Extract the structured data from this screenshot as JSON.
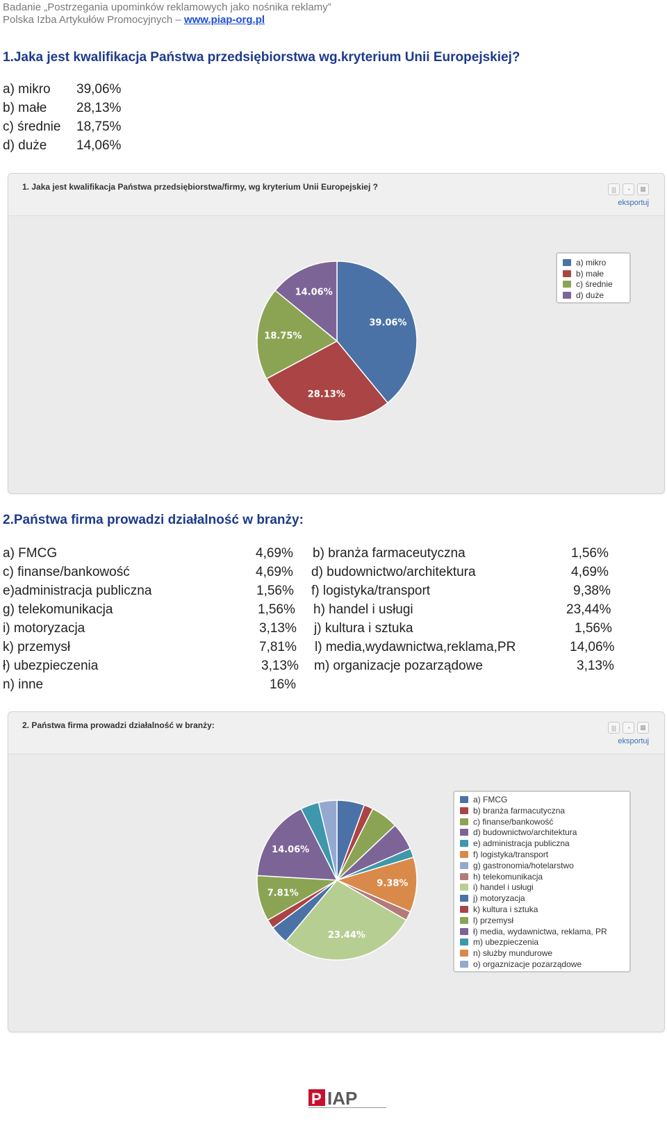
{
  "header": {
    "line1": "Badanie „Postrzegania upominków reklamowych jako nośnika reklamy”",
    "line2_prefix": "Polska Izba Artykułów Promocyjnych – ",
    "link": "www.piap-org.pl"
  },
  "q1": {
    "title": "1.Jaka jest kwalifikacja Państwa przedsiębiorstwa wg.kryterium Unii Europejskiej?",
    "answers": [
      {
        "label": "a) mikro",
        "value": "39,06%"
      },
      {
        "label": "b) małe",
        "value": "28,13%"
      },
      {
        "label": "c) średnie",
        "value": "18,75%"
      },
      {
        "label": "d) duże",
        "value": "14,06%"
      }
    ],
    "panel_title": "1.  Jaka jest kwalifikacja Państwa przedsiębiorstwa/firmy, wg kryterium Unii Europejskiej ?",
    "export_label": "eksportuj"
  },
  "q2": {
    "title": "2.Państwa firma prowadzi działalność w branży:",
    "answers_left": [
      {
        "label": "a) FMCG",
        "value": "4,69%"
      },
      {
        "label": "c) finanse/bankowość",
        "value": "4,69%"
      },
      {
        "label": "e)administracja publiczna",
        "value": "1,56%"
      },
      {
        "label": "g) telekomunikacja",
        "value": "1,56%"
      },
      {
        "label": "i)  motoryzacja",
        "value": "3,13%"
      },
      {
        "label": "k) przemysł",
        "value": "7,81%"
      },
      {
        "label": "ł) ubezpieczenia",
        "value": "3,13%"
      },
      {
        "label": "n) inne",
        "value": "16%"
      }
    ],
    "answers_right": [
      {
        "label": "b) branża farmaceutyczna",
        "value": "1,56%"
      },
      {
        "label": "d) budownictwo/architektura",
        "value": "4,69%"
      },
      {
        "label": "f) logistyka/transport",
        "value": "9,38%"
      },
      {
        "label": "h) handel i usługi",
        "value": "23,44%"
      },
      {
        "label": "j) kultura i sztuka",
        "value": "1,56%"
      },
      {
        "label": "l) media,wydawnictwa,reklama,PR",
        "value": "14,06%"
      },
      {
        "label": "m) organizacje pozarządowe",
        "value": "3,13%"
      }
    ],
    "panel_title": "2.  Państwa firma prowadzi działalność w branży:",
    "export_label": "eksportuj"
  },
  "chart_data": [
    {
      "type": "pie",
      "title": "1.  Jaka jest kwalifikacja Państwa przedsiębiorstwa/firmy, wg kryterium Unii Europejskiej ?",
      "categories": [
        "a) mikro",
        "b) małe",
        "c) średnie",
        "d) duże"
      ],
      "values": [
        39.06,
        28.13,
        18.75,
        14.06
      ],
      "labels": [
        "39.06%",
        "28.13%",
        "18.75%",
        "14.06%"
      ],
      "colors": [
        "#4a72a6",
        "#ab4444",
        "#8ba454",
        "#7d6497"
      ],
      "legend": "right"
    },
    {
      "type": "pie",
      "title": "2.  Państwa firma prowadzi działalność w branży:",
      "categories": [
        "a) FMCG",
        "b) branża farmacutyczna",
        "c) finanse/bankowość",
        "d) budownictwo/architektura",
        "e) administracja publiczna",
        "f) logistyka/transport",
        "g) gastronomia/hotelarstwo",
        "h) telekomunikacja",
        "i) handel i usługi",
        "j) motoryzacja",
        "k) kultura i sztuka",
        "l) przemysł",
        "ł) media, wydawnictwa, reklama, PR",
        "m) ubezpieczenia",
        "n) służby mundurowe",
        "o) orgaznizacje pozarządowe"
      ],
      "values": [
        4.69,
        1.56,
        4.69,
        4.69,
        1.56,
        9.38,
        0,
        1.56,
        23.44,
        3.13,
        1.56,
        7.81,
        14.06,
        3.13,
        0,
        3.13
      ],
      "labels": {
        "5": "9.38%",
        "8": "23.44%",
        "11": "7.81%",
        "12": "14.06%"
      },
      "colors": [
        "#4a72a6",
        "#ab4444",
        "#8ba454",
        "#7d6497",
        "#3e97ab",
        "#d98a4a",
        "#95a9d0",
        "#b27a78",
        "#b7ce93",
        "#4a72a6",
        "#ab4444",
        "#8ba454",
        "#7d6497",
        "#3e97ab",
        "#d98a4a",
        "#95a9d0"
      ],
      "legend": "right"
    }
  ]
}
